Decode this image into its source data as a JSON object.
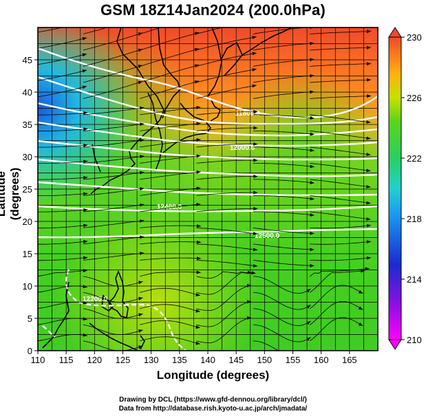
{
  "title": "GSM 18Z14Jan2024 (200.0hPa)",
  "x_axis_label": "Longitude (degrees)",
  "y_axis_label": "Latitude  (degrees)",
  "x_ticks": [
    "110",
    "115",
    "120",
    "125",
    "130",
    "135",
    "140",
    "145",
    "150",
    "155",
    "160",
    "165"
  ],
  "y_ticks": [
    "0",
    "5",
    "10",
    "15",
    "20",
    "25",
    "30",
    "35",
    "40",
    "45"
  ],
  "colorbar_ticks": [
    "210",
    "214",
    "218",
    "222",
    "226",
    "230"
  ],
  "contour_labels": [
    "12400.0",
    "12200.0",
    "12000.0",
    "11800.0",
    "12500.0"
  ],
  "credit_line1": "Drawing by DCL (https://www.gfd-dennou.org/library/dcl/)",
  "credit_line2": "Data from http://database.rish.kyoto-u.ac.jp/arch/jmadata/",
  "map": {
    "lon_range": [
      110,
      170
    ],
    "lat_range": [
      0,
      50
    ],
    "variable": "temperature (K) shaded, geopotential height contours, wind streamlines",
    "colorbar_range": [
      210,
      230
    ],
    "colors": {
      "low": "#ff00ff",
      "blue": "#1a2bd0",
      "cyan": "#22c6e6",
      "green": "#44d022",
      "yellow": "#c8e000",
      "orange": "#ff9a1a",
      "red": "#f04a2a"
    }
  }
}
